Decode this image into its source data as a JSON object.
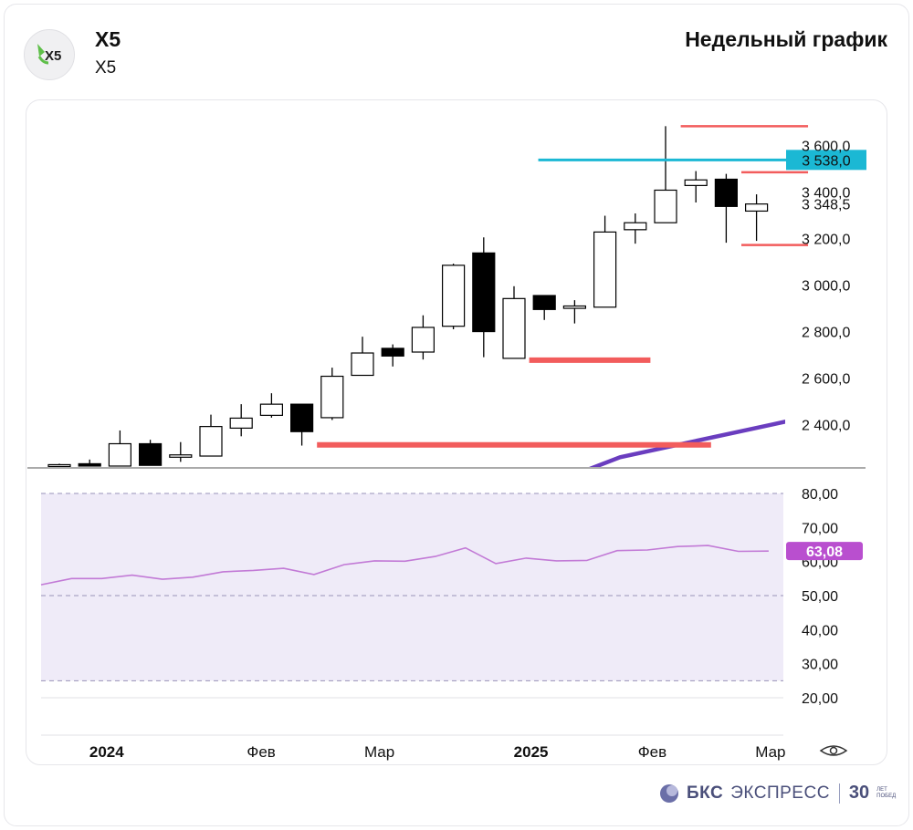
{
  "header": {
    "ticker": "X5",
    "company": "X5",
    "title": "Недельный график",
    "logo_text": "X5"
  },
  "brand": {
    "name": "БКС",
    "product": "ЭКСПРЕСС",
    "years": "30",
    "years_line1": "ЛЕТ",
    "years_line2": "ПОБЕД"
  },
  "chart_data": [
    {
      "type": "candlestick",
      "title": "",
      "x_ticks": [
        {
          "label": "2024",
          "index": 1.5,
          "bold": true
        },
        {
          "label": "Фев",
          "index": 6.6
        },
        {
          "label": "Мар",
          "index": 10.5
        },
        {
          "label": "2025",
          "index": 15.5,
          "bold": true
        },
        {
          "label": "Фев",
          "index": 19.5
        },
        {
          "label": "Мар",
          "index": 23.4
        }
      ],
      "y_ticks": [
        3600,
        3400,
        3200,
        3000,
        2800,
        2600,
        2400
      ],
      "y_tick_labels": [
        "3 600,0",
        "3 400,0",
        "3 200,0",
        "3 000,0",
        "2 800,0",
        "2 600,0",
        "2 400,0"
      ],
      "ylim": [
        2218,
        3700
      ],
      "candles": [
        {
          "o": 2225,
          "h": 2232,
          "l": 2218,
          "c": 2228
        },
        {
          "o": 2232,
          "h": 2250,
          "l": 2222,
          "c": 2222
        },
        {
          "o": 2222,
          "h": 2375,
          "l": 2222,
          "c": 2318
        },
        {
          "o": 2318,
          "h": 2335,
          "l": 2225,
          "c": 2225
        },
        {
          "o": 2260,
          "h": 2325,
          "l": 2240,
          "c": 2270
        },
        {
          "o": 2265,
          "h": 2443,
          "l": 2265,
          "c": 2392
        },
        {
          "o": 2385,
          "h": 2488,
          "l": 2350,
          "c": 2428
        },
        {
          "o": 2440,
          "h": 2535,
          "l": 2430,
          "c": 2488
        },
        {
          "o": 2488,
          "h": 2488,
          "l": 2310,
          "c": 2370
        },
        {
          "o": 2430,
          "h": 2645,
          "l": 2420,
          "c": 2608
        },
        {
          "o": 2612,
          "h": 2778,
          "l": 2612,
          "c": 2708
        },
        {
          "o": 2728,
          "h": 2745,
          "l": 2650,
          "c": 2695
        },
        {
          "o": 2712,
          "h": 2870,
          "l": 2680,
          "c": 2818
        },
        {
          "o": 2823,
          "h": 3092,
          "l": 2810,
          "c": 3085
        },
        {
          "o": 3138,
          "h": 3205,
          "l": 2690,
          "c": 2800
        },
        {
          "o": 2685,
          "h": 2995,
          "l": 2685,
          "c": 2942
        },
        {
          "o": 2955,
          "h": 2955,
          "l": 2850,
          "c": 2895
        },
        {
          "o": 2900,
          "h": 2935,
          "l": 2835,
          "c": 2910
        },
        {
          "o": 2905,
          "h": 3298,
          "l": 2905,
          "c": 3228
        },
        {
          "o": 3238,
          "h": 3308,
          "l": 3178,
          "c": 3268
        },
        {
          "o": 3268,
          "h": 3683,
          "l": 3268,
          "c": 3408
        },
        {
          "o": 3428,
          "h": 3490,
          "l": 3355,
          "c": 3452
        },
        {
          "o": 3455,
          "h": 3478,
          "l": 3182,
          "c": 3338
        },
        {
          "o": 3318,
          "h": 3390,
          "l": 3190,
          "c": 3348.5
        }
      ],
      "current_price_label": "3 348,5",
      "horizontal_levels": [
        {
          "kind": "resistance",
          "value": 3538,
          "label": "3 538,0",
          "color": "#1bb8d4",
          "from": 15.8,
          "to": 25.6
        },
        {
          "kind": "red-line",
          "value": 3683,
          "color": "#f25c5c",
          "from": 20.5,
          "to": 24.7
        },
        {
          "kind": "red-line",
          "value": 3485,
          "color": "#f25c5c",
          "from": 22.5,
          "to": 24.7
        },
        {
          "kind": "red-line",
          "value": 3172,
          "color": "#f25c5c",
          "from": 22.5,
          "to": 24.7
        },
        {
          "kind": "support",
          "value": 2677,
          "color": "#f25c5c",
          "from": 15.5,
          "to": 19.5
        },
        {
          "kind": "support",
          "value": 2313,
          "color": "#f25c5c",
          "from": 8.5,
          "to": 21.5
        }
      ],
      "moving_average": {
        "color": "#6a3dbf",
        "points": [
          [
            16.5,
            2160
          ],
          [
            18.5,
            2260
          ],
          [
            21.0,
            2330
          ],
          [
            23.5,
            2400
          ],
          [
            24.8,
            2438
          ]
        ]
      },
      "colors": {
        "up_fill": "#ffffff",
        "down_fill": "#000000",
        "wick": "#000000"
      }
    },
    {
      "type": "line",
      "title": "",
      "ylim": [
        20,
        80
      ],
      "y_ticks": [
        80,
        70,
        60,
        50,
        40,
        30,
        20
      ],
      "y_tick_labels": [
        "80,00",
        "70,00",
        "60,00",
        "50,00",
        "40,00",
        "30,00",
        "20,00"
      ],
      "band": [
        25,
        80
      ],
      "dashed_levels": [
        80,
        50,
        25
      ],
      "values": [
        53.2,
        55.0,
        55.0,
        56.0,
        54.8,
        55.4,
        57.0,
        57.4,
        58.0,
        56.2,
        59.1,
        60.2,
        60.1,
        61.5,
        64.0,
        59.4,
        61.0,
        60.2,
        60.3,
        63.2,
        63.4,
        64.4,
        64.7,
        63.0,
        63.08
      ],
      "current_label": "63,08",
      "colors": {
        "line": "#c27ad6",
        "band": "#efebf8",
        "label_bg": "#b94fcf"
      }
    }
  ]
}
